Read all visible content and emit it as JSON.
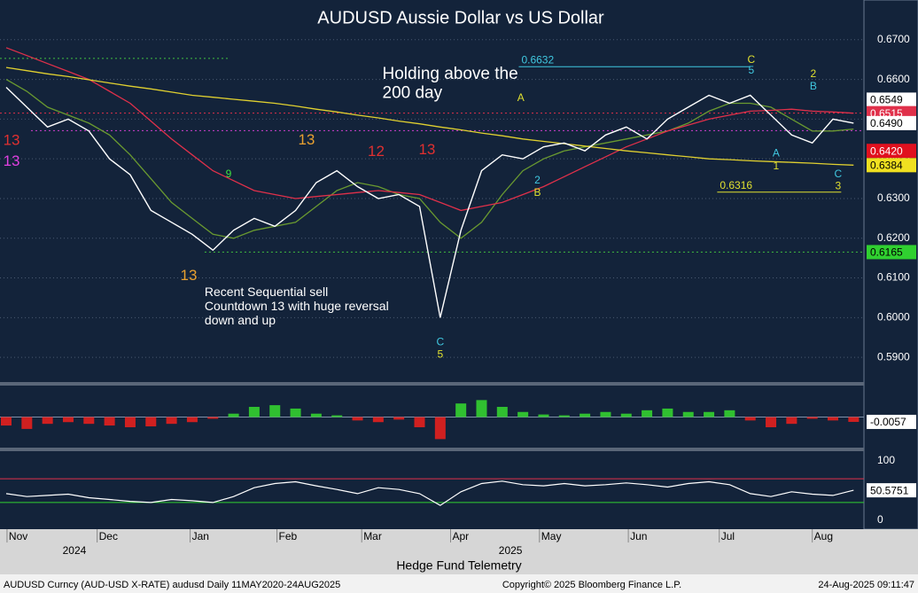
{
  "chart_data": [
    {
      "type": "line",
      "title": "AUDUSD Aussie Dollar vs US Dollar",
      "x": [
        0,
        1,
        2,
        3,
        4,
        5,
        6,
        7,
        8,
        9,
        10,
        11,
        12,
        13,
        14,
        15,
        16,
        17,
        18,
        19,
        20,
        21,
        22,
        23,
        24,
        25,
        26,
        27,
        28,
        29,
        30,
        31,
        32,
        33,
        34,
        35,
        36,
        37,
        38,
        39,
        40,
        41
      ],
      "xlim": [
        -0.3,
        41.5
      ],
      "xticks": [
        {
          "value": 0.04,
          "label": "Nov"
        },
        {
          "value": 4.4,
          "label": "Dec"
        },
        {
          "value": 8.9,
          "label": "Jan"
        },
        {
          "value": 13.1,
          "label": "Feb"
        },
        {
          "value": 17.2,
          "label": "Mar"
        },
        {
          "value": 21.5,
          "label": "Apr"
        },
        {
          "value": 25.8,
          "label": "May"
        },
        {
          "value": 30.1,
          "label": "Jun"
        },
        {
          "value": 34.5,
          "label": "Jul"
        },
        {
          "value": 39.0,
          "label": "Aug"
        }
      ],
      "year_labels": [
        {
          "value": 3.3,
          "label": "2024"
        },
        {
          "value": 24.4,
          "label": "2025"
        }
      ],
      "ylim": [
        0.584,
        0.68
      ],
      "yticks": [
        {
          "value": 0.59,
          "label": "0.5900"
        },
        {
          "value": 0.6,
          "label": "0.6000"
        },
        {
          "value": 0.61,
          "label": "0.6100"
        },
        {
          "value": 0.62,
          "label": "0.6200"
        },
        {
          "value": 0.63,
          "label": "0.6300"
        },
        {
          "value": 0.64,
          "label": "0.6400"
        },
        {
          "value": 0.65,
          "label": "0.6500"
        },
        {
          "value": 0.66,
          "label": "0.6600"
        },
        {
          "value": 0.67,
          "label": "0.6700"
        }
      ],
      "grid": true,
      "series": [
        {
          "color": "#ffffff",
          "values": [
            0.658,
            0.653,
            0.648,
            0.65,
            0.647,
            0.64,
            0.636,
            0.627,
            0.624,
            0.621,
            0.617,
            0.622,
            0.625,
            0.623,
            0.627,
            0.634,
            0.637,
            0.633,
            0.63,
            0.631,
            0.628,
            0.6,
            0.622,
            0.637,
            0.641,
            0.64,
            0.643,
            0.644,
            0.642,
            0.646,
            0.648,
            0.645,
            0.65,
            0.653,
            0.656,
            0.654,
            0.656,
            0.651,
            0.646,
            0.644,
            0.65,
            0.649
          ]
        },
        {
          "color": "#e0d030",
          "values": [
            0.663,
            0.6622,
            0.6614,
            0.6607,
            0.6599,
            0.6591,
            0.6583,
            0.6576,
            0.6568,
            0.656,
            0.6555,
            0.655,
            0.6545,
            0.654,
            0.6533,
            0.6525,
            0.6518,
            0.651,
            0.6503,
            0.6495,
            0.6488,
            0.648,
            0.6473,
            0.6465,
            0.6458,
            0.645,
            0.6444,
            0.6438,
            0.6432,
            0.6426,
            0.642,
            0.6415,
            0.641,
            0.6405,
            0.64,
            0.6398,
            0.6395,
            0.6393,
            0.6391,
            0.6389,
            0.6386,
            0.6384
          ]
        },
        {
          "color": "#e0304a",
          "values": [
            0.668,
            0.666,
            0.664,
            0.662,
            0.66,
            0.657,
            0.654,
            0.6495,
            0.645,
            0.641,
            0.637,
            0.6345,
            0.632,
            0.631,
            0.63,
            0.6305,
            0.631,
            0.6315,
            0.632,
            0.6315,
            0.631,
            0.629,
            0.627,
            0.628,
            0.629,
            0.631,
            0.633,
            0.6355,
            0.638,
            0.6405,
            0.643,
            0.645,
            0.647,
            0.6485,
            0.65,
            0.651,
            0.652,
            0.6522,
            0.6525,
            0.652,
            0.6518,
            0.6515
          ]
        },
        {
          "color": "#6a9a30",
          "values": [
            0.66,
            0.657,
            0.653,
            0.651,
            0.649,
            0.646,
            0.641,
            0.635,
            0.629,
            0.625,
            0.621,
            0.62,
            0.622,
            0.623,
            0.624,
            0.628,
            0.632,
            0.634,
            0.633,
            0.631,
            0.63,
            0.624,
            0.62,
            0.624,
            0.631,
            0.637,
            0.64,
            0.642,
            0.643,
            0.644,
            0.645,
            0.646,
            0.647,
            0.649,
            0.652,
            0.654,
            0.654,
            0.653,
            0.65,
            0.647,
            0.647,
            0.6475
          ]
        }
      ],
      "levels": [
        {
          "value": 0.6653,
          "color": "#40c040",
          "dash": true,
          "from": -0.3,
          "to": 10.8
        },
        {
          "value": 0.6165,
          "color": "#40c040",
          "dash": true,
          "from": 9.6,
          "to": 41.5
        },
        {
          "value": 0.6632,
          "label": "0.6632",
          "color": "#40c8e0",
          "from": 24.8,
          "to": 36.0
        },
        {
          "value": 0.6316,
          "label": "0.6316",
          "color": "#e0e030",
          "from": 34.4,
          "to": 40.4
        },
        {
          "value": 0.6471,
          "color": "#d040d0",
          "dash": true,
          "from": 1.2,
          "to": 41.5
        },
        {
          "value": 0.6515,
          "color": "#e0304a",
          "dash": true,
          "from": -0.3,
          "to": 41.5
        }
      ],
      "price_tags": [
        {
          "value": 0.6549,
          "label": "0.6549",
          "color": "#ffffff",
          "text_color": "#000000"
        },
        {
          "value": 0.6515,
          "label": "0.6515",
          "color": "#e0304a",
          "text_color": "#ffffff"
        },
        {
          "value": 0.649,
          "label": "0.6490",
          "color": "#ffffff",
          "text_color": "#000000"
        },
        {
          "value": 0.642,
          "label": "0.6420",
          "color": "#e0101e",
          "text_color": "#ffffff"
        },
        {
          "value": 0.6384,
          "label": "0.6384",
          "color": "#f0e020",
          "text_color": "#000000"
        },
        {
          "value": 0.6165,
          "label": "0.6165",
          "color": "#30d030",
          "text_color": "#000000"
        }
      ],
      "markers": [
        {
          "text": "13",
          "x": 0.26,
          "y": 0.6445,
          "color": "#e03030"
        },
        {
          "text": "13",
          "x": 0.26,
          "y": 0.6392,
          "color": "#e040e0"
        },
        {
          "text": "13",
          "x": 8.83,
          "y": 0.6105,
          "color": "#e8a030"
        },
        {
          "text": "9",
          "x": 10.76,
          "y": 0.6361,
          "color": "#40e040"
        },
        {
          "text": "13",
          "x": 14.53,
          "y": 0.6446,
          "color": "#e8a030"
        },
        {
          "text": "12",
          "x": 17.9,
          "y": 0.6417,
          "color": "#e03030"
        },
        {
          "text": "13",
          "x": 20.36,
          "y": 0.6421,
          "color": "#e03030"
        },
        {
          "text": "C",
          "x": 21.0,
          "y": 0.5937,
          "color": "#40c8e0"
        },
        {
          "text": "5",
          "x": 21.0,
          "y": 0.5906,
          "color": "#e0e030"
        },
        {
          "text": "A",
          "x": 24.9,
          "y": 0.6553,
          "color": "#e0e030"
        },
        {
          "text": "2",
          "x": 25.7,
          "y": 0.6345,
          "color": "#40c8e0"
        },
        {
          "text": "B",
          "x": 25.7,
          "y": 0.6314,
          "color": "#e0e030"
        },
        {
          "text": "C",
          "x": 36.05,
          "y": 0.6649,
          "color": "#e0e030"
        },
        {
          "text": "5",
          "x": 36.05,
          "y": 0.6622,
          "color": "#40c8e0"
        },
        {
          "text": "A",
          "x": 37.25,
          "y": 0.6413,
          "color": "#40c8e0"
        },
        {
          "text": "1",
          "x": 37.25,
          "y": 0.6381,
          "color": "#e0e030"
        },
        {
          "text": "2",
          "x": 39.05,
          "y": 0.6613,
          "color": "#e0e030"
        },
        {
          "text": "B",
          "x": 39.05,
          "y": 0.6582,
          "color": "#40c8e0"
        },
        {
          "text": "C",
          "x": 40.25,
          "y": 0.6361,
          "color": "#40c8e0"
        },
        {
          "text": "3",
          "x": 40.25,
          "y": 0.633,
          "color": "#e0e030"
        }
      ],
      "annotations": [
        {
          "lines": [
            "Holding above the",
            "200 day"
          ],
          "x": 18.2,
          "y": 0.6613,
          "size": 19
        },
        {
          "lines": [
            "Recent Sequential sell",
            "Countdown 13 with huge reversal",
            "down and up"
          ],
          "x": 9.6,
          "y": 0.6063,
          "size": 14
        }
      ]
    },
    {
      "type": "bar",
      "values": [
        -0.01,
        -0.014,
        -0.008,
        -0.006,
        -0.008,
        -0.01,
        -0.012,
        -0.011,
        -0.008,
        -0.006,
        -0.002,
        0.004,
        0.012,
        0.014,
        0.01,
        0.004,
        0.002,
        -0.004,
        -0.006,
        -0.003,
        -0.012,
        -0.026,
        0.016,
        0.02,
        0.012,
        0.006,
        0.003,
        0.002,
        0.004,
        0.006,
        0.004,
        0.008,
        0.01,
        0.006,
        0.006,
        0.008,
        -0.004,
        -0.012,
        -0.008,
        -0.002,
        -0.004,
        -0.0057
      ],
      "ylim": [
        -0.035,
        0.035
      ],
      "pos_color": "#30c030",
      "neg_color": "#d02020",
      "last_tag": {
        "value": -0.0057,
        "label": "-0.0057"
      }
    },
    {
      "type": "line",
      "values": [
        45,
        40,
        42,
        44,
        38,
        35,
        32,
        30,
        35,
        33,
        30,
        40,
        55,
        62,
        65,
        58,
        52,
        45,
        55,
        52,
        45,
        25,
        48,
        62,
        66,
        60,
        58,
        62,
        58,
        60,
        63,
        60,
        56,
        62,
        65,
        60,
        45,
        40,
        48,
        44,
        42,
        50.5751
      ],
      "color": "#ffffff",
      "ylim": [
        -12,
        115
      ],
      "yticks": [
        0,
        100
      ],
      "levels": [
        {
          "value": 70,
          "color": "#e0304a"
        },
        {
          "value": 30,
          "color": "#30d030"
        }
      ],
      "last_tag": {
        "value": 50.5751,
        "label": "50.5751"
      }
    }
  ],
  "footer": {
    "brand": "Hedge Fund Telemetry",
    "ticker": "AUDUSD Curncy (AUD-USD X-RATE) audusd  Daily 11MAY2020-24AUG2025",
    "copyright": "Copyright© 2025 Bloomberg Finance L.P.",
    "timestamp": "24-Aug-2025 09:11:47"
  }
}
